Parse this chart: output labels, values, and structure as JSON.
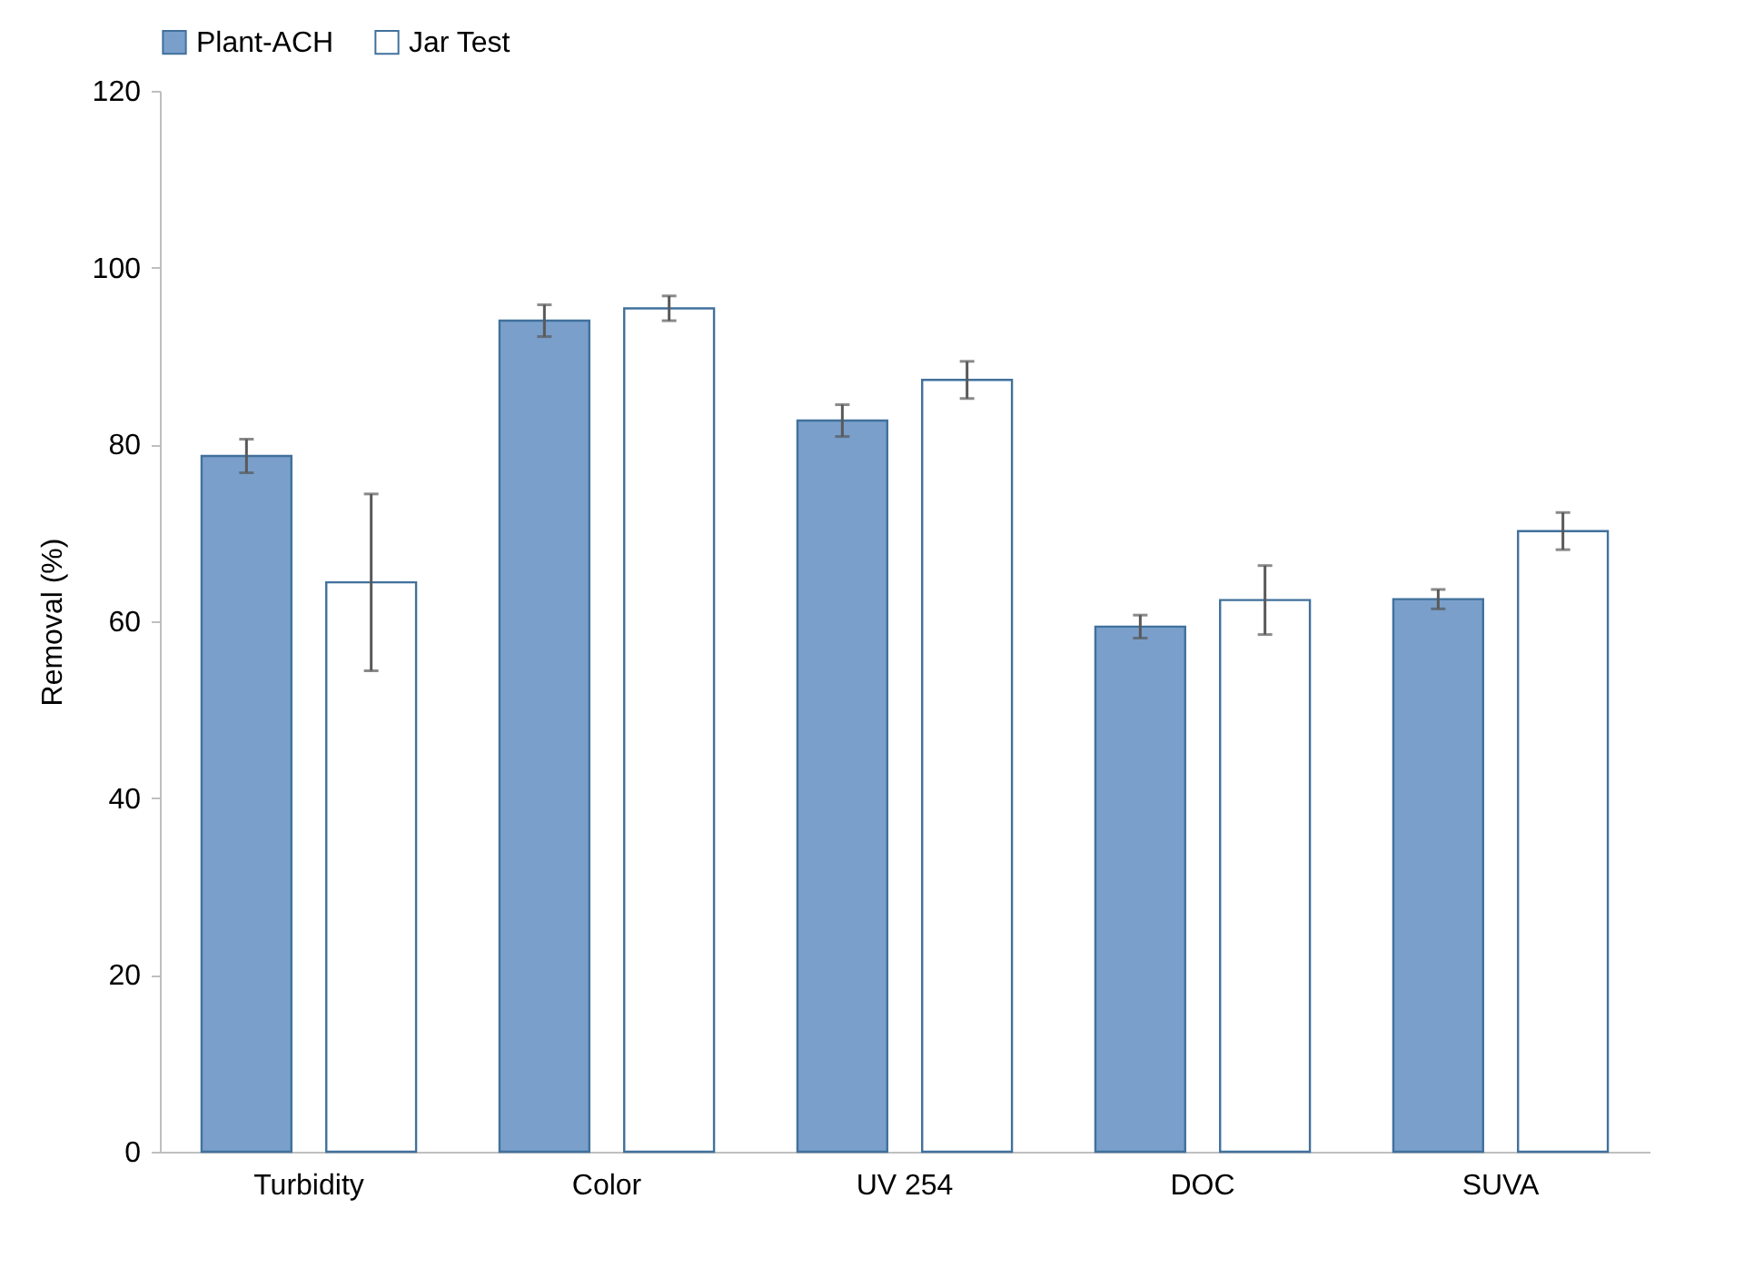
{
  "chart_data": {
    "type": "bar",
    "ylabel": "Removal (%)",
    "categories": [
      "Turbidity",
      "Color",
      "UV 254",
      "DOC",
      "SUVA"
    ],
    "series": [
      {
        "name": "Plant-ACH",
        "color": "#7a9fcb",
        "values": [
          78.7,
          94.0,
          82.7,
          59.4,
          62.5
        ],
        "errors": [
          1.9,
          1.8,
          1.8,
          1.3,
          1.1
        ]
      },
      {
        "name": "Jar Test",
        "color": "#ffffff",
        "values": [
          64.4,
          95.4,
          87.3,
          62.4,
          70.2
        ],
        "errors": [
          10,
          1.4,
          2.1,
          3.9,
          2.1
        ]
      }
    ],
    "ylim": [
      0,
      120
    ],
    "yticks": [
      0,
      20,
      40,
      60,
      80,
      100,
      120
    ],
    "grid": false,
    "legend": "top"
  }
}
